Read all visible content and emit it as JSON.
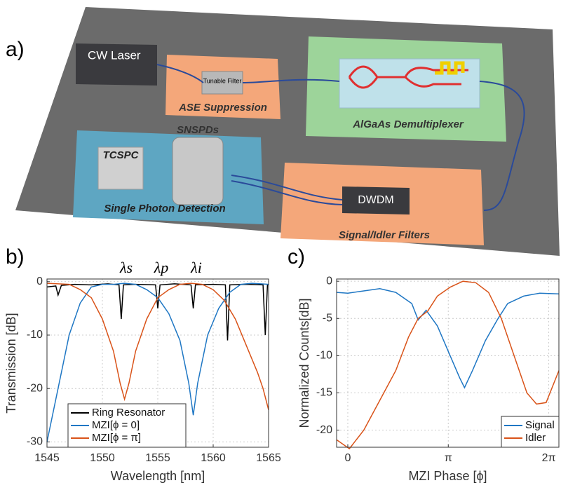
{
  "panel_labels": [
    "a)",
    "b)",
    "c)"
  ],
  "diagram": {
    "labels": [
      "CW Laser",
      "Tunable Filter",
      "ASE Suppression",
      "AlGaAs Demultiplexer",
      "SNSPDs",
      "TCSPC",
      "Single Photon Detection",
      "DWDM",
      "Signal/Idler Filters"
    ]
  },
  "chart_data": [
    {
      "type": "line",
      "xlabel": "Wavelength [nm]",
      "ylabel": "Transmission [dB]",
      "xlim": [
        1545,
        1565
      ],
      "ylim": [
        -31,
        0.5
      ],
      "xticks": [
        1545,
        1550,
        1555,
        1560,
        1565
      ],
      "yticks": [
        -30,
        -20,
        -10,
        0
      ],
      "grid": true,
      "legend": "lower left",
      "annotations": [
        "λs",
        "λp",
        "λi"
      ],
      "series": [
        {
          "name": "Ring Resonator",
          "color": "#000000",
          "x": [
            1545,
            1545.8,
            1546,
            1546.3,
            1547.5,
            1549,
            1550.5,
            1551.5,
            1551.7,
            1551.9,
            1553,
            1554.8,
            1555,
            1555.2,
            1556.5,
            1558,
            1558.2,
            1558.4,
            1560,
            1561.1,
            1561.3,
            1561.5,
            1563,
            1564.5,
            1564.7,
            1564.9,
            1565
          ],
          "values": [
            -1,
            -0.8,
            -2.5,
            -0.7,
            -0.5,
            -0.6,
            -0.4,
            -0.6,
            -7,
            -0.6,
            -0.5,
            -0.6,
            -5,
            -0.6,
            -0.4,
            -0.6,
            -5,
            -0.6,
            -0.5,
            -0.6,
            -11,
            -0.6,
            -0.5,
            -0.6,
            -10,
            -0.6,
            -0.5
          ]
        },
        {
          "name": "MZI[ϕ = 0]",
          "color": "#1f77c4",
          "x": [
            1545,
            1546,
            1547,
            1548,
            1549,
            1550,
            1551,
            1552,
            1553,
            1554,
            1555,
            1556,
            1557,
            1557.8,
            1558.2,
            1558.6,
            1559.5,
            1560.5,
            1561.5,
            1562.5,
            1563.5,
            1565
          ],
          "values": [
            -30,
            -20,
            -10,
            -4,
            -1,
            -0.5,
            -0.5,
            -0.3,
            -0.5,
            -1.5,
            -3,
            -6,
            -11,
            -19,
            -25,
            -19,
            -10,
            -5,
            -2,
            -0.5,
            -0.3,
            -0.5
          ]
        },
        {
          "name": "MZI[ϕ = π]",
          "color": "#d95319",
          "x": [
            1545,
            1547,
            1548,
            1549,
            1550,
            1551,
            1551.6,
            1552,
            1552.4,
            1553,
            1554,
            1555,
            1556,
            1557,
            1558,
            1559,
            1560,
            1561,
            1562,
            1563,
            1564,
            1564.5,
            1565
          ],
          "values": [
            -0.3,
            -0.5,
            -1.5,
            -3,
            -7,
            -13,
            -19,
            -22,
            -19,
            -13,
            -7,
            -3,
            -1.5,
            -0.5,
            -0.3,
            -0.5,
            -1.5,
            -3.5,
            -7,
            -12,
            -17,
            -20,
            -24
          ]
        }
      ]
    },
    {
      "type": "line",
      "xlabel": "MZI Phase [ϕ]",
      "ylabel": "Normalized Counts[dB]",
      "xlim": [
        -0.35,
        6.6
      ],
      "ylim": [
        -22.3,
        0.3
      ],
      "xticks": [
        0,
        {
          "value": 3.1416,
          "label": "π"
        },
        {
          "value": 6.2832,
          "label": "2π"
        }
      ],
      "yticks": [
        -20,
        -15,
        -10,
        -5,
        0
      ],
      "grid": true,
      "legend": "lower right",
      "series": [
        {
          "name": "Signal",
          "color": "#1f77c4",
          "x": [
            -0.35,
            0,
            0.5,
            1.0,
            1.5,
            2.0,
            2.2,
            2.45,
            2.8,
            3.2,
            3.5,
            3.65,
            3.9,
            4.3,
            4.7,
            5.0,
            5.5,
            6.0,
            6.6
          ],
          "values": [
            -1.5,
            -1.6,
            -1.3,
            -1.0,
            -1.5,
            -3.0,
            -5.2,
            -3.9,
            -6,
            -10,
            -13,
            -14.3,
            -12,
            -8,
            -5,
            -3,
            -2,
            -1.6,
            -1.7
          ]
        },
        {
          "name": "Idler",
          "color": "#d95319",
          "x": [
            -0.35,
            0.05,
            0.5,
            1.0,
            1.5,
            1.9,
            2.2,
            2.5,
            2.8,
            3.2,
            3.6,
            4.0,
            4.4,
            4.8,
            5.2,
            5.6,
            5.9,
            6.2,
            6.6
          ],
          "values": [
            -21.3,
            -22.5,
            -20,
            -16,
            -12,
            -7.5,
            -5,
            -4,
            -2,
            -0.8,
            0,
            -0.2,
            -1.5,
            -5,
            -10,
            -15,
            -16.5,
            -16.3,
            -12
          ]
        }
      ]
    }
  ]
}
